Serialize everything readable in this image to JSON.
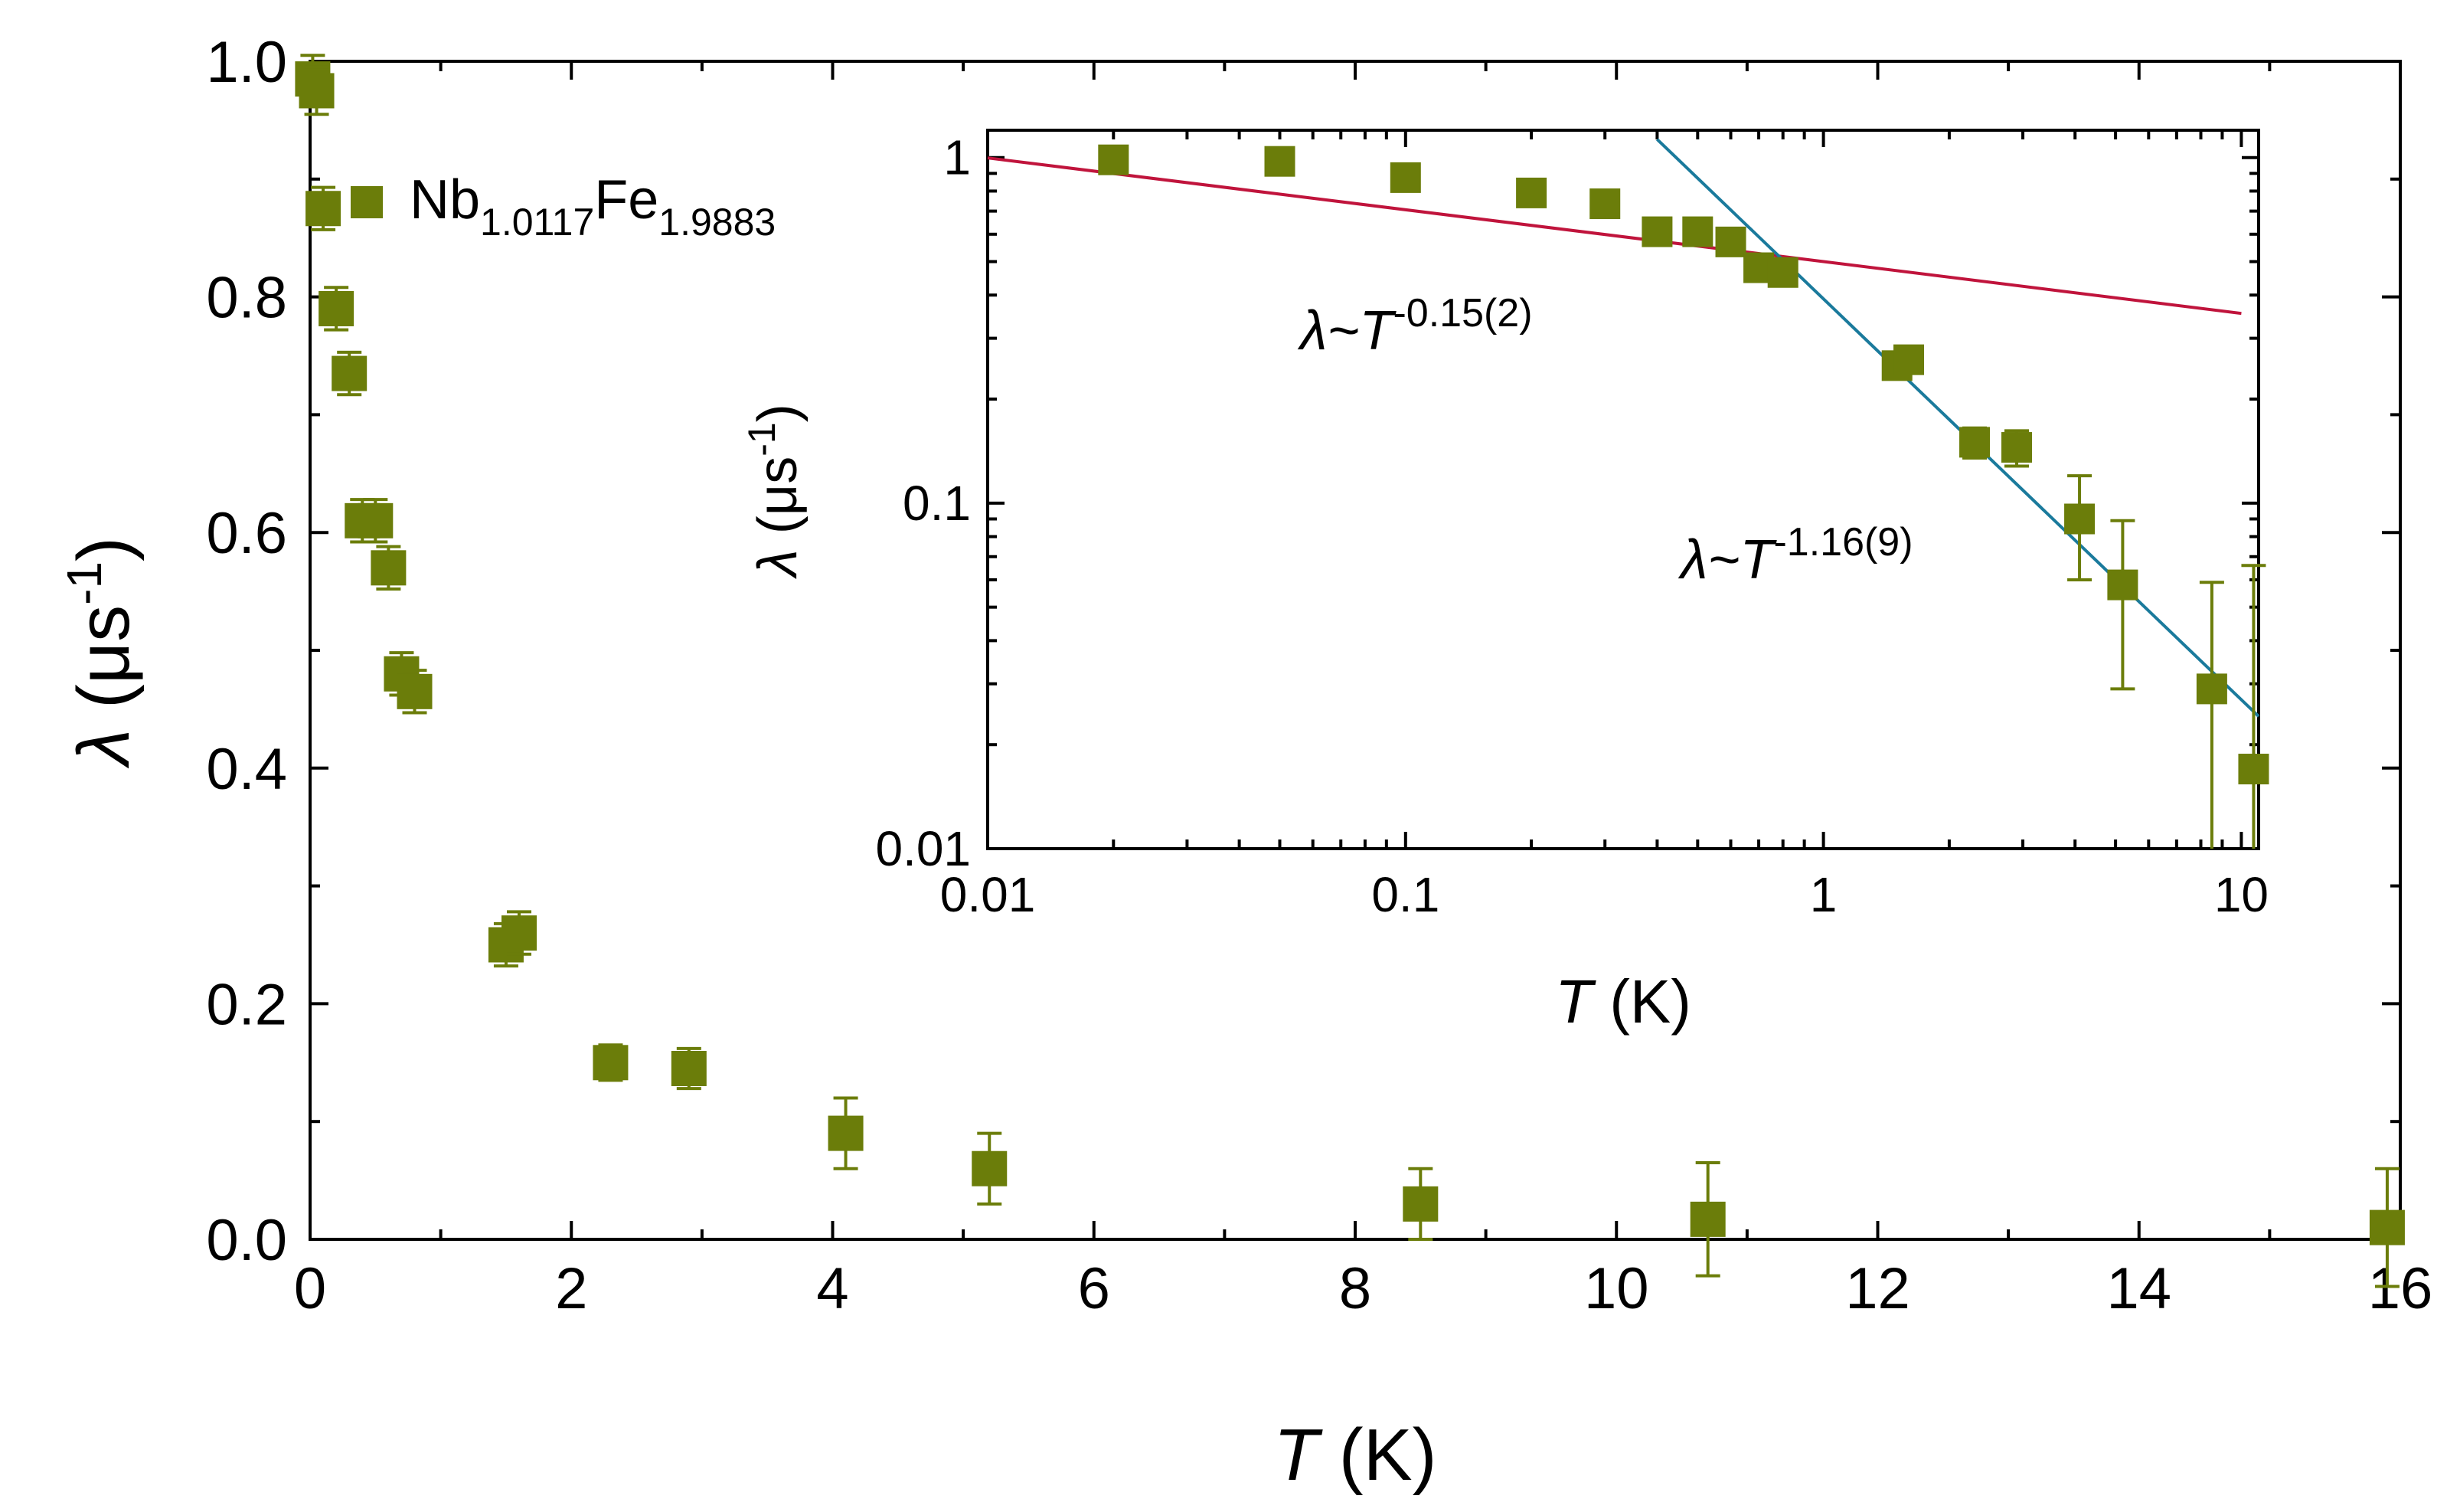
{
  "chart_data": [
    {
      "type": "scatter",
      "id": "main",
      "xlabel": {
        "symbol": "T",
        "unit": "(K)"
      },
      "ylabel": {
        "symbol": "λ",
        "unit": "(μs",
        "exp": "-1",
        "close": ")"
      },
      "xlim": [
        0,
        16
      ],
      "ylim": [
        0,
        1.0
      ],
      "xticks": [
        "0",
        "2",
        "4",
        "6",
        "8",
        "10",
        "12",
        "14",
        "16"
      ],
      "yticks": [
        "0.0",
        "0.2",
        "0.4",
        "0.6",
        "0.8",
        "1.0"
      ],
      "legend": {
        "base1": "Nb",
        "sub1": "1.0117",
        "base2": "Fe",
        "sub2": "1.9883",
        "position": "top-left"
      },
      "marker_color": "#6b7d0a",
      "series": [
        {
          "name": "Nb1.0117Fe1.9883",
          "points": [
            {
              "x": 0.02,
              "y": 0.985,
              "err": 0.02
            },
            {
              "x": 0.05,
              "y": 0.975,
              "err": 0.02
            },
            {
              "x": 0.1,
              "y": 0.875,
              "err": 0.018
            },
            {
              "x": 0.2,
              "y": 0.79,
              "err": 0.018
            },
            {
              "x": 0.3,
              "y": 0.735,
              "err": 0.018
            },
            {
              "x": 0.4,
              "y": 0.61,
              "err": 0.018
            },
            {
              "x": 0.5,
              "y": 0.61,
              "err": 0.018
            },
            {
              "x": 0.6,
              "y": 0.57,
              "err": 0.018
            },
            {
              "x": 0.7,
              "y": 0.48,
              "err": 0.018
            },
            {
              "x": 0.8,
              "y": 0.465,
              "err": 0.018
            },
            {
              "x": 1.5,
              "y": 0.25,
              "err": 0.018
            },
            {
              "x": 1.6,
              "y": 0.26,
              "err": 0.018
            },
            {
              "x": 2.3,
              "y": 0.15,
              "err": 0.015
            },
            {
              "x": 2.9,
              "y": 0.145,
              "err": 0.017
            },
            {
              "x": 4.1,
              "y": 0.09,
              "err": 0.03
            },
            {
              "x": 5.2,
              "y": 0.06,
              "err": 0.03
            },
            {
              "x": 8.5,
              "y": 0.03,
              "err": 0.03
            },
            {
              "x": 10.7,
              "y": 0.017,
              "err": 0.048
            },
            {
              "x": 15.9,
              "y": 0.01,
              "err": 0.05
            }
          ]
        }
      ]
    },
    {
      "type": "scatter",
      "id": "inset",
      "xscale": "log",
      "yscale": "log",
      "xlabel": {
        "symbol": "T",
        "unit": "(K)"
      },
      "ylabel": {
        "symbol": "λ",
        "unit": "(μs",
        "exp": "-1",
        "close": ")"
      },
      "xlim": [
        0.01,
        11
      ],
      "ylim": [
        0.01,
        1.2
      ],
      "xticks": [
        "0.01",
        "0.1",
        "1",
        "10"
      ],
      "yticks": [
        "0.01",
        "0.1",
        "1"
      ],
      "fits": [
        {
          "label_base": "λ~",
          "label_symbol": "T",
          "label_exp": "-0.15(2)",
          "color": "#c0143c",
          "prefactor": 0.5,
          "exponent": -0.15,
          "xrange": [
            0.01,
            10
          ]
        },
        {
          "label_base": "λ~",
          "label_symbol": "T",
          "label_exp": "-1.16(9)",
          "color": "#1a7a9c",
          "prefactor": 0.39,
          "exponent": -1.16,
          "xrange": [
            0.4,
            11
          ]
        }
      ],
      "series": [
        {
          "name": "Nb1.0117Fe1.9883",
          "points": [
            {
              "x": 0.02,
              "y": 0.985
            },
            {
              "x": 0.05,
              "y": 0.975
            },
            {
              "x": 0.1,
              "y": 0.875
            },
            {
              "x": 0.2,
              "y": 0.79
            },
            {
              "x": 0.3,
              "y": 0.735
            },
            {
              "x": 0.4,
              "y": 0.61
            },
            {
              "x": 0.5,
              "y": 0.61
            },
            {
              "x": 0.6,
              "y": 0.57
            },
            {
              "x": 0.7,
              "y": 0.48
            },
            {
              "x": 0.8,
              "y": 0.465
            },
            {
              "x": 1.5,
              "y": 0.25
            },
            {
              "x": 1.6,
              "y": 0.26
            },
            {
              "x": 2.3,
              "y": 0.15,
              "lo": 0.135,
              "hi": 0.165
            },
            {
              "x": 2.9,
              "y": 0.145,
              "lo": 0.128,
              "hi": 0.162
            },
            {
              "x": 4.1,
              "y": 0.09,
              "lo": 0.06,
              "hi": 0.12
            },
            {
              "x": 5.2,
              "y": 0.058,
              "lo": 0.029,
              "hi": 0.089
            },
            {
              "x": 8.5,
              "y": 0.029,
              "lo": 0.006,
              "hi": 0.059
            },
            {
              "x": 10.7,
              "y": 0.017,
              "lo": 0.005,
              "hi": 0.066
            }
          ]
        }
      ]
    }
  ]
}
